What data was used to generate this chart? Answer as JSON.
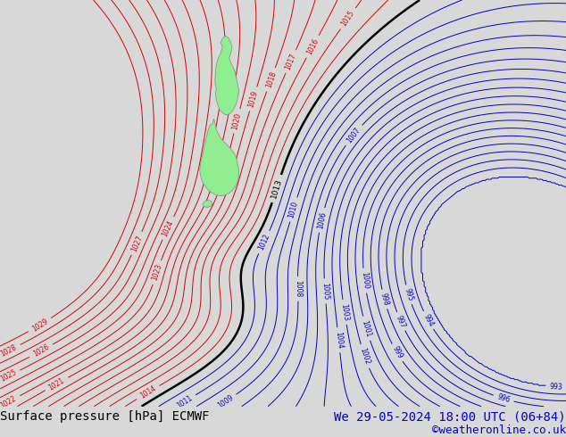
{
  "title_left": "Surface pressure [hPa] ECMWF",
  "title_right": "We 29-05-2024 18:00 UTC (06+84)",
  "copyright": "©weatheronline.co.uk",
  "bg_color": "#d8d8d8",
  "red_isobar_color": "#dd0000",
  "blue_isobar_color": "#0000cc",
  "black_isobar_color": "#000000",
  "land_color": "#90ee90",
  "land_border_color": "#888888",
  "text_color_left": "#000000",
  "text_color_right": "#0000cc",
  "font_size_bottom": 10,
  "font_size_copyright": 9
}
